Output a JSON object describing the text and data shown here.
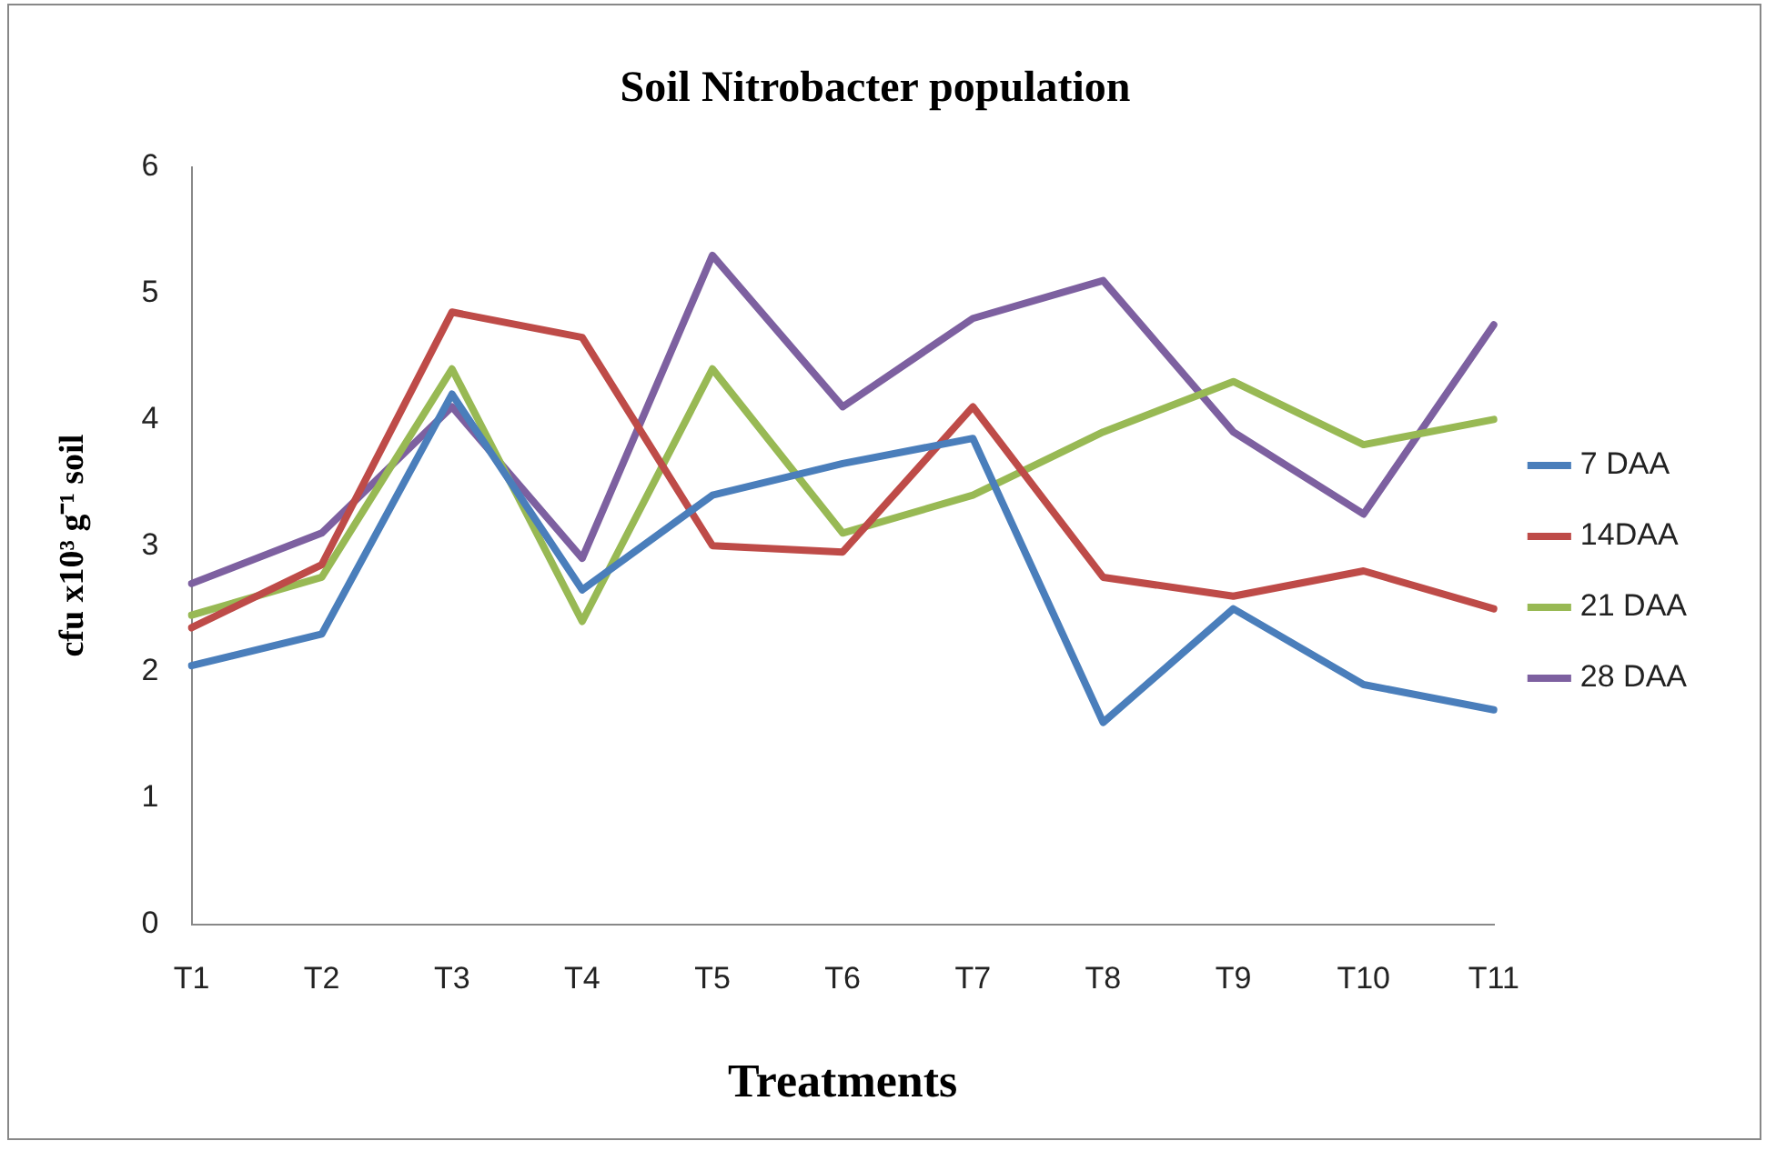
{
  "chart_data": {
    "type": "line",
    "title": "Soil Nitrobacter population",
    "xlabel": "Treatments",
    "ylabel": "cfu x10³ g⁻¹ soil",
    "categories": [
      "T1",
      "T2",
      "T3",
      "T4",
      "T5",
      "T6",
      "T7",
      "T8",
      "T9",
      "T10",
      "T11"
    ],
    "ylim": [
      0,
      6
    ],
    "yticks": [
      0,
      1,
      2,
      3,
      4,
      5,
      6
    ],
    "grid": false,
    "legend": "right",
    "marker": "none",
    "line_style": "solid",
    "series": [
      {
        "name": "7 DAA",
        "color": "#4a7ebb",
        "values": [
          2.05,
          2.3,
          4.2,
          2.65,
          3.4,
          3.65,
          3.85,
          1.6,
          2.5,
          1.9,
          1.7
        ]
      },
      {
        "name": "14DAA",
        "color": "#be4b48",
        "values": [
          2.35,
          2.85,
          4.85,
          4.65,
          3.0,
          2.95,
          4.1,
          2.75,
          2.6,
          2.8,
          2.5
        ]
      },
      {
        "name": "21 DAA",
        "color": "#98b954",
        "values": [
          2.45,
          2.75,
          4.4,
          2.4,
          4.4,
          3.1,
          3.4,
          3.9,
          4.3,
          3.8,
          4.0
        ]
      },
      {
        "name": "28 DAA",
        "color": "#7d60a0",
        "values": [
          2.7,
          3.1,
          4.1,
          2.9,
          5.3,
          4.1,
          4.8,
          5.1,
          3.9,
          3.25,
          4.75
        ]
      }
    ]
  }
}
